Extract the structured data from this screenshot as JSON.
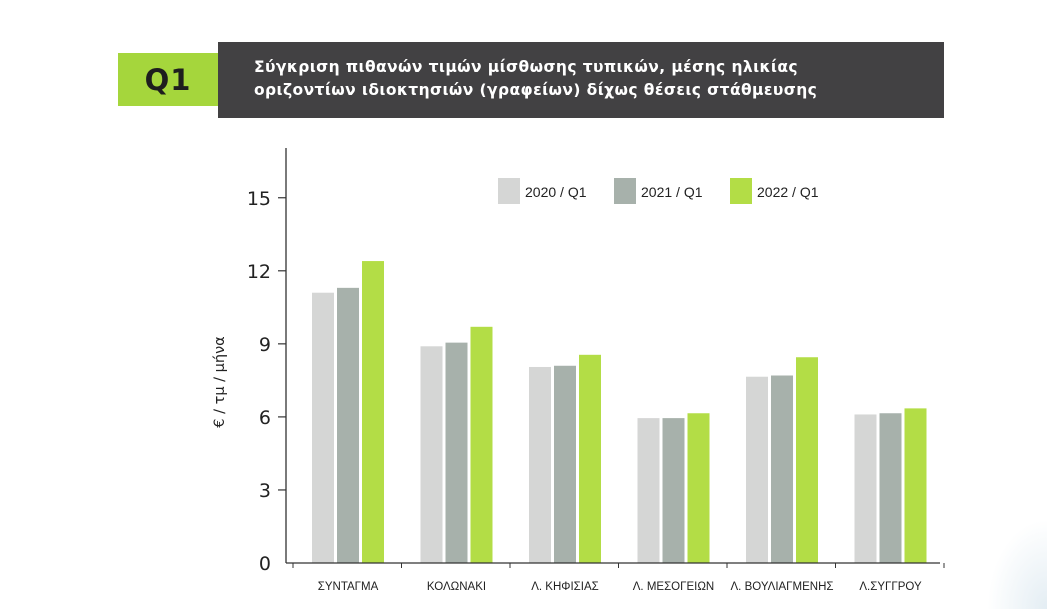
{
  "header": {
    "badge": "Q1",
    "title_line1": "Σύγκριση πιθανών τιμών μίσθωσης τυπικών, μέσης ηλικίας",
    "title_line2": "οριζοντίων ιδιοκτησιών (γραφείων) δίχως θέσεις στάθμευσης"
  },
  "colors": {
    "badge_bg": "#a5d63c",
    "title_bg": "#424143",
    "axis": "#333333"
  },
  "chart_data": {
    "type": "bar",
    "ylabel": "€ / τμ / μήνα",
    "ylim": [
      0,
      17
    ],
    "yticks": [
      0,
      3,
      6,
      9,
      12,
      15
    ],
    "grid": false,
    "legend_position": "top-right",
    "categories": [
      "ΣΥΝΤΑΓΜΑ",
      "ΚΟΛΩΝΑΚΙ",
      "Λ. ΚΗΦΙΣΙΑΣ",
      "Λ. ΜΕΣΟΓΕΙΩΝ",
      "Λ. ΒΟΥΛΙΑΓΜΕΝΗΣ",
      "Λ.ΣΥΓΓΡΟΥ"
    ],
    "series": [
      {
        "name": "2020 / Q1",
        "color": "#d5d6d5",
        "values": [
          11.1,
          8.9,
          8.05,
          5.95,
          7.65,
          6.1
        ]
      },
      {
        "name": "2021 / Q1",
        "color": "#a7b1ab",
        "values": [
          11.3,
          9.05,
          8.1,
          5.95,
          7.7,
          6.15
        ]
      },
      {
        "name": "2022 / Q1",
        "color": "#b3dd46",
        "values": [
          12.4,
          9.7,
          8.55,
          6.15,
          8.45,
          6.35
        ]
      }
    ]
  }
}
